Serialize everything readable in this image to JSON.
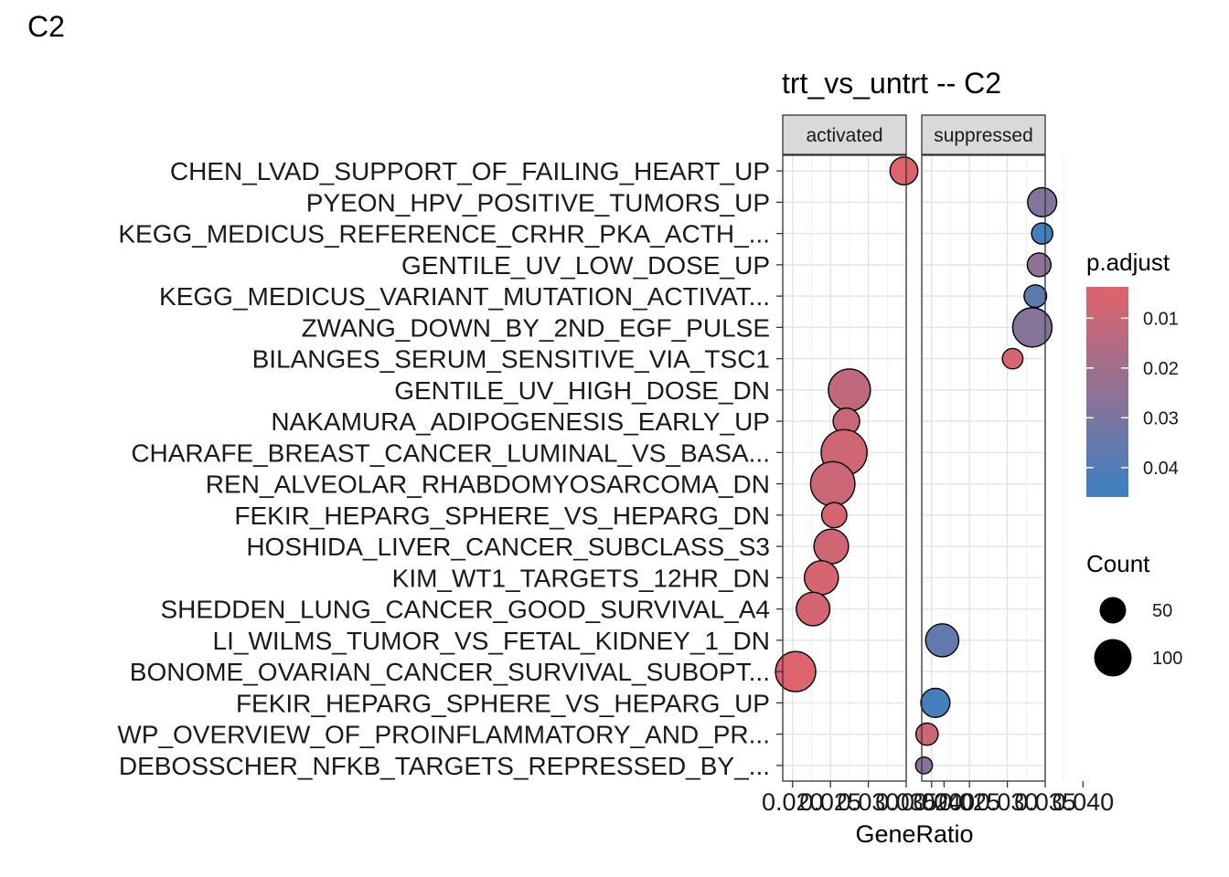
{
  "corner_label": "C2",
  "chart_data": {
    "type": "scatter",
    "title": "trt_vs_untrt -- C2",
    "xlabel": "GeneRatio",
    "ylabel": "",
    "facets": [
      "activated",
      "suppressed"
    ],
    "x_ticks": [
      "0.020",
      "0.025",
      "0.030",
      "0.035",
      "0.040"
    ],
    "xlim": [
      0.0187,
      0.035
    ],
    "color_var": "p.adjust",
    "color_low": "#e0636b",
    "color_high": "#3c80c0",
    "color_ticks": [
      0.01,
      0.02,
      0.03,
      0.04
    ],
    "color_range": [
      0.0037,
      0.0459
    ],
    "size_var": "Count",
    "size_legend": [
      50,
      100
    ],
    "categories": [
      "CHEN_LVAD_SUPPORT_OF_FAILING_HEART_UP",
      "PYEON_HPV_POSITIVE_TUMORS_UP",
      "KEGG_MEDICUS_REFERENCE_CRHR_PKA_ACTH_...",
      "GENTILE_UV_LOW_DOSE_UP",
      "KEGG_MEDICUS_VARIANT_MUTATION_ACTIVAT...",
      "ZWANG_DOWN_BY_2ND_EGF_PULSE",
      "BILANGES_SERUM_SENSITIVE_VIA_TSC1",
      "GENTILE_UV_HIGH_DOSE_DN",
      "NAKAMURA_ADIPOGENESIS_EARLY_UP",
      "CHARAFE_BREAST_CANCER_LUMINAL_VS_BASA...",
      "REN_ALVEOLAR_RHABDOMYOSARCOMA_DN",
      "FEKIR_HEPARG_SPHERE_VS_HEPARG_DN",
      "HOSHIDA_LIVER_CANCER_SUBCLASS_S3",
      "KIM_WT1_TARGETS_12HR_DN",
      "SHEDDEN_LUNG_CANCER_GOOD_SURVIVAL_A4",
      "LI_WILMS_TUMOR_VS_FETAL_KIDNEY_1_DN",
      "BONOME_OVARIAN_CANCER_SURVIVAL_SUBOPT...",
      "FEKIR_HEPARG_SPHERE_VS_HEPARG_UP",
      "WP_OVERVIEW_OF_PROINFLAMMATORY_AND_PR...",
      "DEBOSSCHER_NFKB_TARGETS_REPRESSED_BY_..."
    ],
    "points": [
      {
        "term": "CHEN_LVAD_SUPPORT_OF_FAILING_HEART_UP",
        "facet": "activated",
        "x": 0.0347,
        "p_adjust": 0.004,
        "count": 55
      },
      {
        "term": "PYEON_HPV_POSITIVE_TUMORS_UP",
        "facet": "suppressed",
        "x": 0.0346,
        "p_adjust": 0.028,
        "count": 60
      },
      {
        "term": "KEGG_MEDICUS_REFERENCE_CRHR_PKA_ACTH_...",
        "facet": "suppressed",
        "x": 0.0346,
        "p_adjust": 0.044,
        "count": 32
      },
      {
        "term": "GENTILE_UV_LOW_DOSE_UP",
        "facet": "suppressed",
        "x": 0.0342,
        "p_adjust": 0.025,
        "count": 40
      },
      {
        "term": "KEGG_MEDICUS_VARIANT_MUTATION_ACTIVAT...",
        "facet": "suppressed",
        "x": 0.0337,
        "p_adjust": 0.038,
        "count": 36
      },
      {
        "term": "ZWANG_DOWN_BY_2ND_EGF_PULSE",
        "facet": "suppressed",
        "x": 0.0333,
        "p_adjust": 0.027,
        "count": 110
      },
      {
        "term": "BILANGES_SERUM_SENSITIVE_VIA_TSC1",
        "facet": "suppressed",
        "x": 0.0307,
        "p_adjust": 0.006,
        "count": 30
      },
      {
        "term": "GENTILE_UV_HIGH_DOSE_DN",
        "facet": "activated",
        "x": 0.0275,
        "p_adjust": 0.012,
        "count": 125
      },
      {
        "term": "NAKAMURA_ADIPOGENESIS_EARLY_UP",
        "facet": "activated",
        "x": 0.0271,
        "p_adjust": 0.01,
        "count": 50
      },
      {
        "term": "CHARAFE_BREAST_CANCER_LUMINAL_VS_BASA...",
        "facet": "activated",
        "x": 0.0268,
        "p_adjust": 0.008,
        "count": 150
      },
      {
        "term": "REN_ALVEOLAR_RHABDOMYOSARCOMA_DN",
        "facet": "activated",
        "x": 0.0253,
        "p_adjust": 0.009,
        "count": 140
      },
      {
        "term": "FEKIR_HEPARG_SPHERE_VS_HEPARG_DN",
        "facet": "activated",
        "x": 0.0255,
        "p_adjust": 0.006,
        "count": 45
      },
      {
        "term": "HOSHIDA_LIVER_CANCER_SUBCLASS_S3",
        "facet": "activated",
        "x": 0.0251,
        "p_adjust": 0.008,
        "count": 85
      },
      {
        "term": "KIM_WT1_TARGETS_12HR_DN",
        "facet": "activated",
        "x": 0.0238,
        "p_adjust": 0.006,
        "count": 82
      },
      {
        "term": "SHEDDEN_LUNG_CANCER_GOOD_SURVIVAL_A4",
        "facet": "activated",
        "x": 0.0227,
        "p_adjust": 0.007,
        "count": 80
      },
      {
        "term": "LI_WILMS_TUMOR_VS_FETAL_KIDNEY_1_DN",
        "facet": "suppressed",
        "x": 0.0214,
        "p_adjust": 0.036,
        "count": 78
      },
      {
        "term": "BONOME_OVARIAN_CANCER_SURVIVAL_SUBOPT...",
        "facet": "activated",
        "x": 0.0204,
        "p_adjust": 0.004,
        "count": 115
      },
      {
        "term": "FEKIR_HEPARG_SPHERE_VS_HEPARG_UP",
        "facet": "suppressed",
        "x": 0.0205,
        "p_adjust": 0.044,
        "count": 60
      },
      {
        "term": "WP_OVERVIEW_OF_PROINFLAMMATORY_AND_PR...",
        "facet": "suppressed",
        "x": 0.0194,
        "p_adjust": 0.01,
        "count": 35
      },
      {
        "term": "DEBOSSCHER_NFKB_TARGETS_REPRESSED_BY_...",
        "facet": "suppressed",
        "x": 0.019,
        "p_adjust": 0.026,
        "count": 20
      }
    ]
  }
}
